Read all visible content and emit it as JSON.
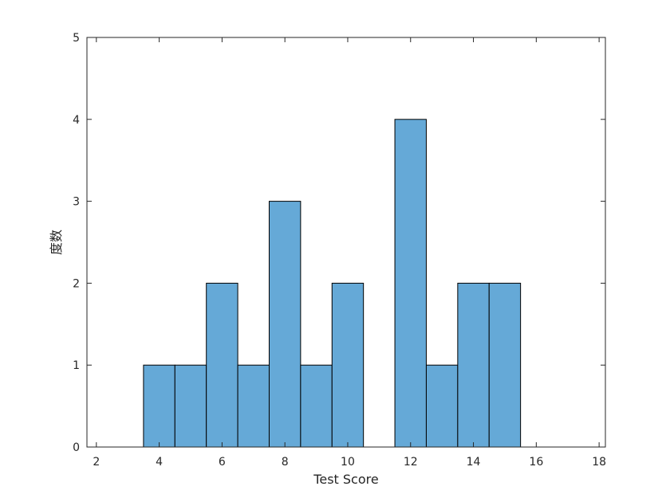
{
  "chart_data": {
    "type": "bar",
    "title": "",
    "xlabel": "Test Score",
    "ylabel": "度数",
    "xlim": [
      1.7,
      18.2
    ],
    "ylim": [
      0,
      5
    ],
    "xticks": [
      2,
      4,
      6,
      8,
      10,
      12,
      14,
      16,
      18
    ],
    "yticks": [
      0,
      1,
      2,
      3,
      4,
      5
    ],
    "bar_color": "#65a9d7",
    "edge_color": "#000000",
    "grid": false,
    "bins": [
      {
        "x0": 3.5,
        "x1": 4.5,
        "count": 1
      },
      {
        "x0": 4.5,
        "x1": 5.5,
        "count": 1
      },
      {
        "x0": 5.5,
        "x1": 6.5,
        "count": 2
      },
      {
        "x0": 6.5,
        "x1": 7.5,
        "count": 1
      },
      {
        "x0": 7.5,
        "x1": 8.5,
        "count": 3
      },
      {
        "x0": 8.5,
        "x1": 9.5,
        "count": 1
      },
      {
        "x0": 9.5,
        "x1": 10.5,
        "count": 2
      },
      {
        "x0": 10.5,
        "x1": 11.5,
        "count": 0
      },
      {
        "x0": 11.5,
        "x1": 12.5,
        "count": 4
      },
      {
        "x0": 12.5,
        "x1": 13.5,
        "count": 1
      },
      {
        "x0": 13.5,
        "x1": 14.5,
        "count": 2
      },
      {
        "x0": 14.5,
        "x1": 15.5,
        "count": 2
      }
    ]
  }
}
